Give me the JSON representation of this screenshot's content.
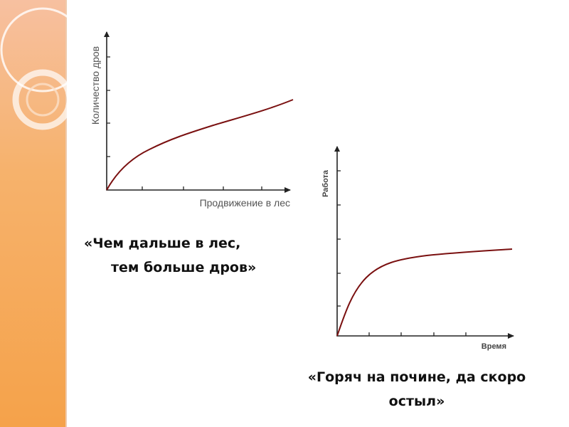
{
  "slide": {
    "figure_left": {
      "y_label": "Количество дров",
      "x_label": "Продвижение в лес"
    },
    "quote_left": {
      "lines": [
        "«Чем дальше в лес,",
        "тем больше дров»"
      ]
    },
    "figure_right": {
      "y_label": "Работа",
      "x_label": "Время"
    },
    "quote_right": {
      "lines": [
        "«Горяч на почине,  да скоро",
        "остыл»"
      ]
    }
  }
}
